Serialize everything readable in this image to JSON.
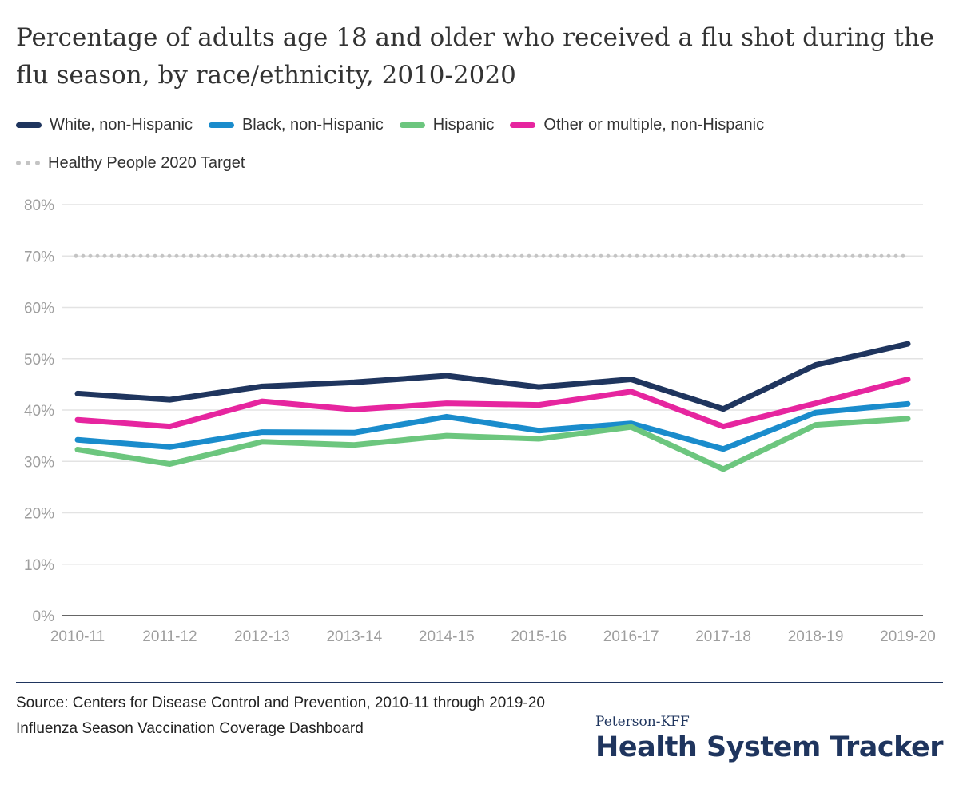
{
  "title": "Percentage of adults age 18 and older who received a flu shot during the flu season, by race/ethnicity, 2010-2020",
  "legend": {
    "items": [
      {
        "label": "White, non-Hispanic",
        "color": "#1f355e"
      },
      {
        "label": "Black, non-Hispanic",
        "color": "#1a8ccc"
      },
      {
        "label": "Hispanic",
        "color": "#6cc67e"
      },
      {
        "label": "Other or multiple, non-Hispanic",
        "color": "#e6259f"
      }
    ],
    "target_label": "Healthy People 2020 Target",
    "target_color": "#c4c4c4"
  },
  "chart_data": {
    "type": "line",
    "categories": [
      "2010-11",
      "2011-12",
      "2012-13",
      "2013-14",
      "2014-15",
      "2015-16",
      "2016-17",
      "2017-18",
      "2018-19",
      "2019-20"
    ],
    "series": [
      {
        "name": "White, non-Hispanic",
        "color": "#1f355e",
        "values": [
          43.2,
          42.0,
          44.6,
          45.4,
          46.7,
          44.5,
          46.0,
          40.2,
          48.8,
          52.9
        ]
      },
      {
        "name": "Black, non-Hispanic",
        "color": "#1a8ccc",
        "values": [
          34.2,
          32.8,
          35.7,
          35.6,
          38.7,
          36.0,
          37.4,
          32.4,
          39.5,
          41.2
        ]
      },
      {
        "name": "Hispanic",
        "color": "#6cc67e",
        "values": [
          32.3,
          29.5,
          33.8,
          33.2,
          35.0,
          34.4,
          36.7,
          28.5,
          37.1,
          38.3
        ]
      },
      {
        "name": "Other or multiple, non-Hispanic",
        "color": "#e6259f",
        "values": [
          38.1,
          36.8,
          41.7,
          40.1,
          41.3,
          41.0,
          43.6,
          36.8,
          41.3,
          46.0
        ]
      }
    ],
    "target": {
      "name": "Healthy People 2020 Target",
      "value": 70
    },
    "y_ticks": [
      "0%",
      "10%",
      "20%",
      "30%",
      "40%",
      "50%",
      "60%",
      "70%",
      "80%"
    ],
    "ylim": [
      0,
      80
    ],
    "grid": true,
    "legend_position": "top-left"
  },
  "source": "Source: Centers for Disease Control and Prevention, 2010-11 through 2019-20 Influenza Season Vaccination Coverage Dashboard",
  "logo": {
    "top": "Peterson-KFF",
    "main": "Health System Tracker"
  }
}
